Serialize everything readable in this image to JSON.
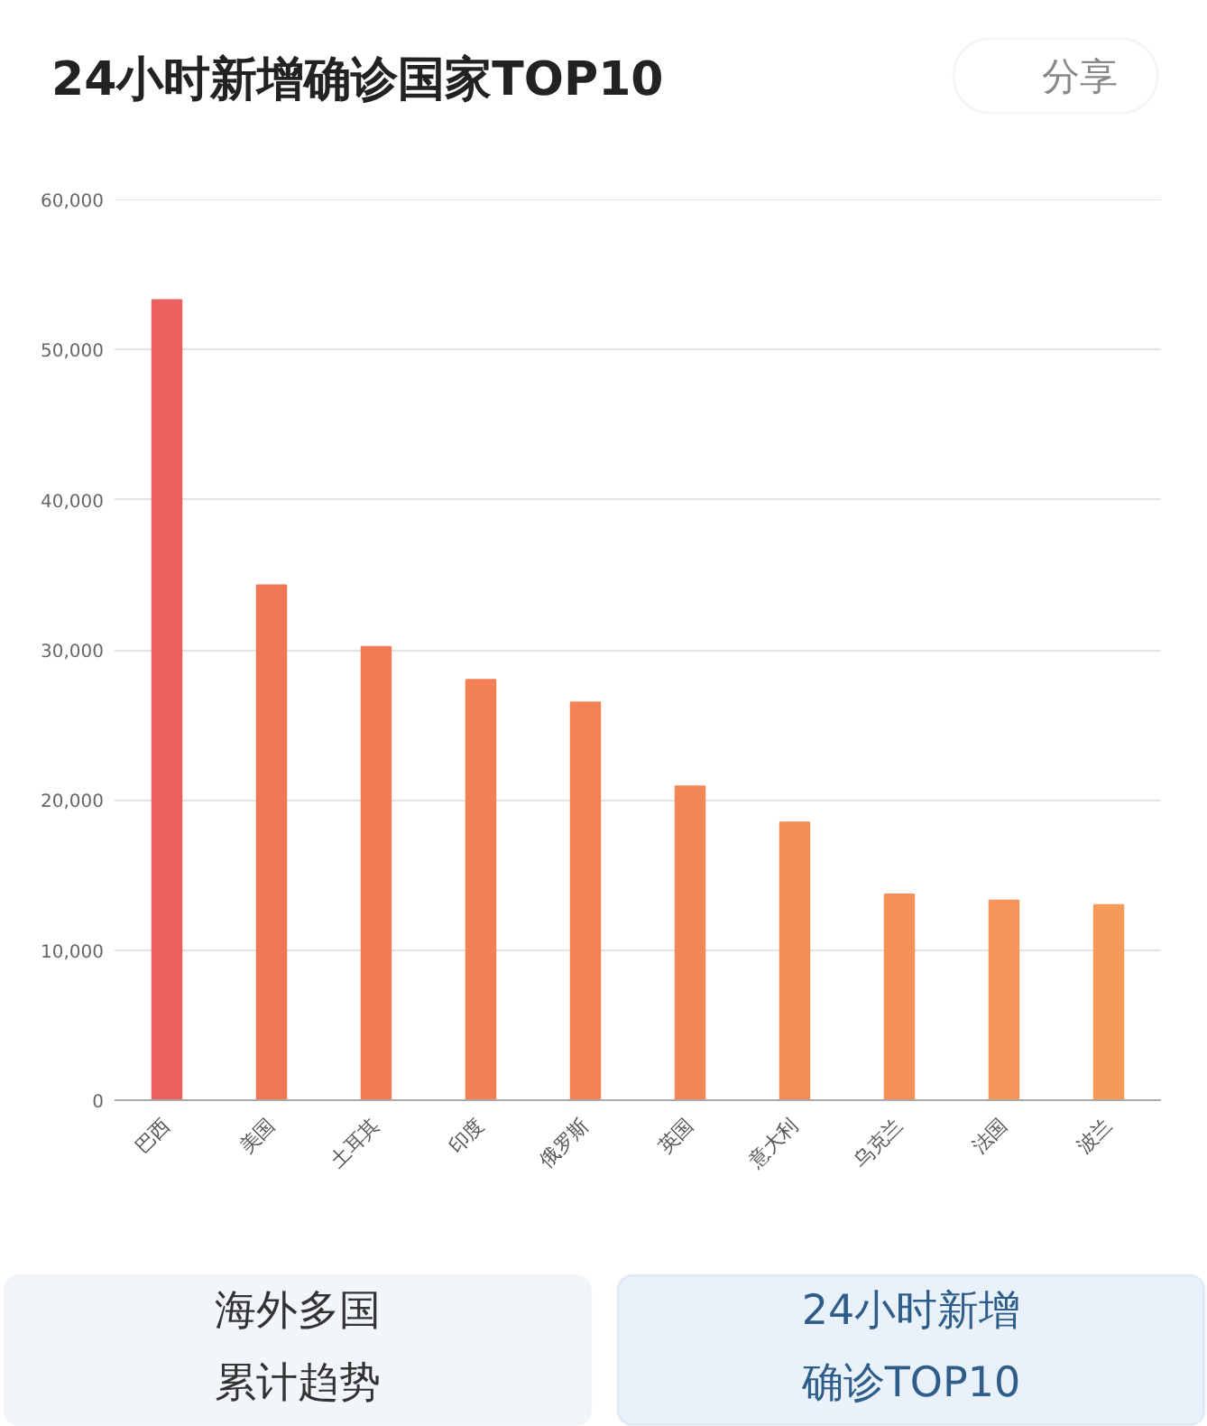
{
  "chart_data": {
    "type": "bar",
    "title": "24小时新增确诊国家TOP10",
    "categories": [
      "巴西",
      "美国",
      "土耳其",
      "印度",
      "俄罗斯",
      "英国",
      "意大利",
      "乌克兰",
      "法国",
      "波兰"
    ],
    "values": [
      53300,
      34300,
      30200,
      28000,
      26500,
      20900,
      18500,
      13700,
      13300,
      13000
    ],
    "colors": [
      "#e9605e",
      "#f07756",
      "#f27b55",
      "#f37f55",
      "#f38355",
      "#f48756",
      "#f48c57",
      "#f59158",
      "#f59559",
      "#f5995a"
    ],
    "ylim": [
      0,
      60000
    ],
    "yticks": [
      0,
      {
        "value": 10000,
        "label": "10,000"
      },
      {
        "value": 20000,
        "label": "20,000"
      },
      {
        "value": 30000,
        "label": "30,000"
      },
      {
        "value": 40000,
        "label": "40,000"
      },
      {
        "value": 50000,
        "label": "50,000"
      },
      {
        "value": 60000,
        "label": "60,000"
      }
    ],
    "grid": "y",
    "annotations": [
      "分享",
      "海外多国累计趋势",
      "24小时新增确诊TOP10"
    ]
  }
}
